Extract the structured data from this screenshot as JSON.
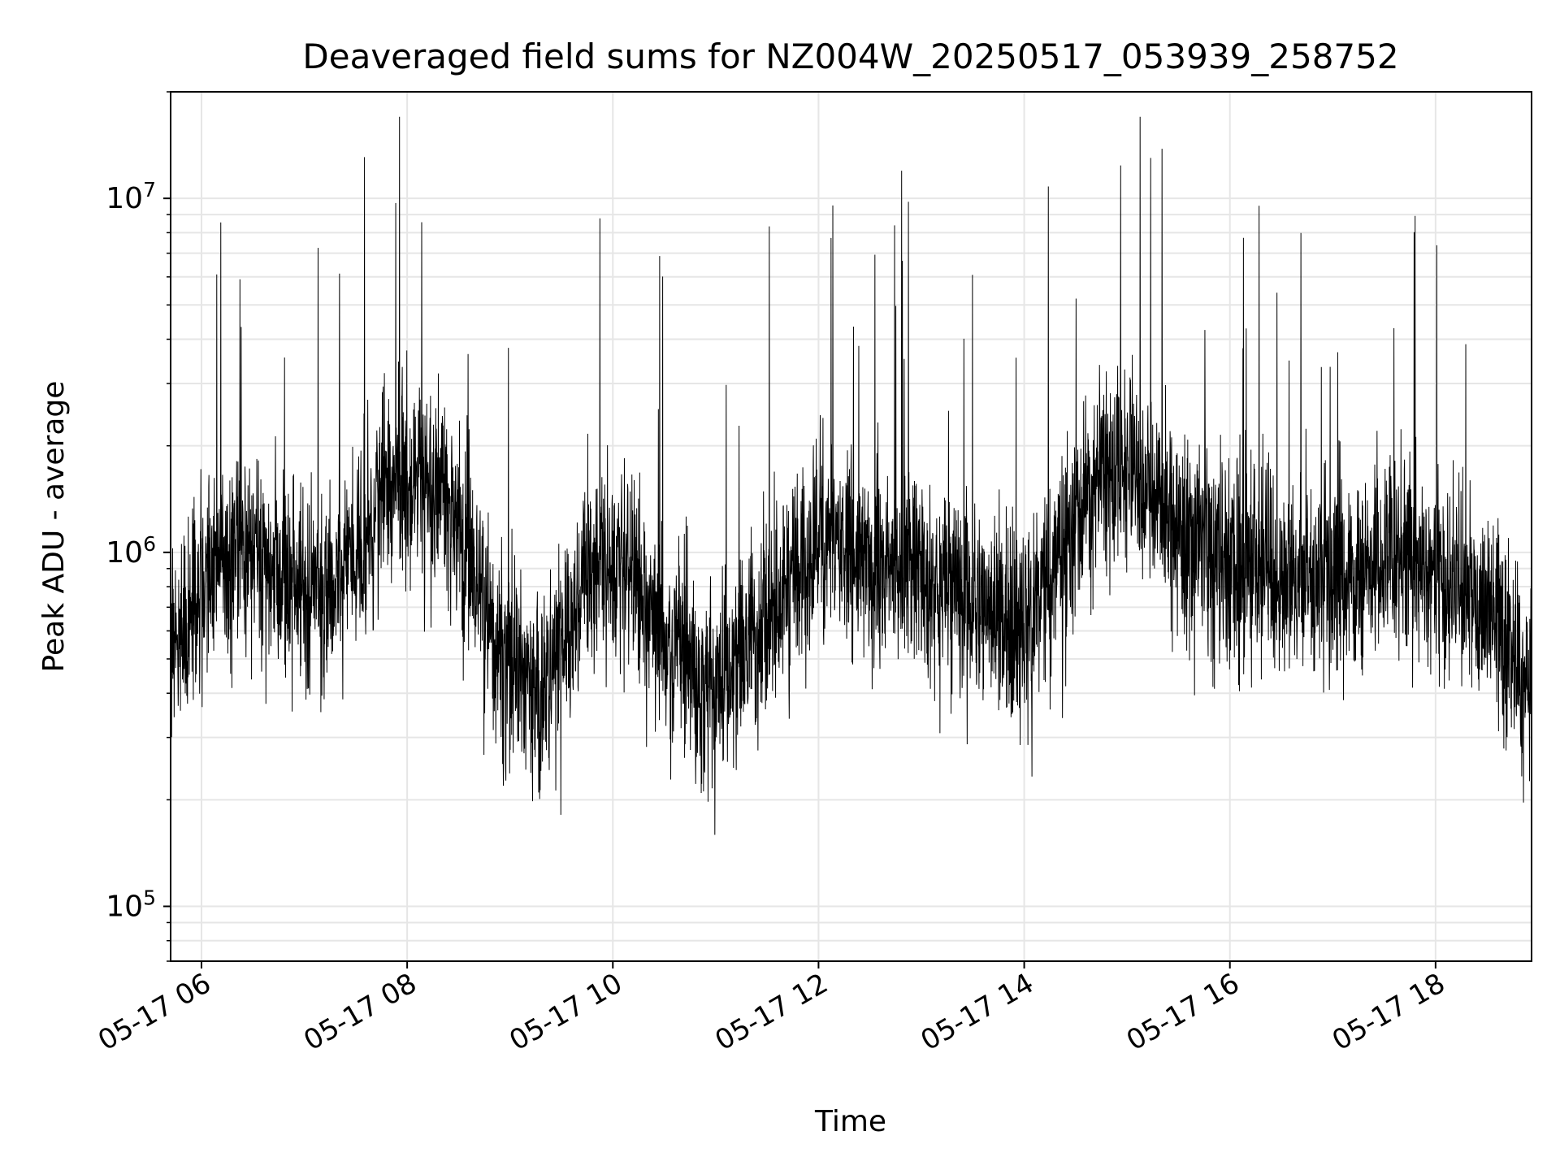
{
  "chart_data": {
    "type": "line",
    "title": "Deaveraged field sums for NZ004W_20250517_053939_258752",
    "xlabel": "Time",
    "ylabel": "Peak ADU - average",
    "x_range": [
      "2025-05-17T05:42",
      "2025-05-17T18:56"
    ],
    "y_range": [
      70000,
      20000000
    ],
    "y_scale": "log",
    "grid": true,
    "line_color": "#000000",
    "grid_color": "#e6e6e6",
    "x_ticks": [
      {
        "value": "2025-05-17T06:00",
        "label": "05-17 06"
      },
      {
        "value": "2025-05-17T08:00",
        "label": "05-17 08"
      },
      {
        "value": "2025-05-17T10:00",
        "label": "05-17 10"
      },
      {
        "value": "2025-05-17T12:00",
        "label": "05-17 12"
      },
      {
        "value": "2025-05-17T14:00",
        "label": "05-17 14"
      },
      {
        "value": "2025-05-17T16:00",
        "label": "05-17 16"
      },
      {
        "value": "2025-05-17T18:00",
        "label": "05-17 18"
      }
    ],
    "y_ticks": [
      {
        "value": 100000,
        "base": "10",
        "exp": "5"
      },
      {
        "value": 1000000,
        "base": "10",
        "exp": "6"
      },
      {
        "value": 10000000,
        "base": "10",
        "exp": "7"
      }
    ],
    "series": [
      {
        "x": [
          "2025-05-17T05:42",
          "2025-05-17T06:00",
          "2025-05-17T06:15",
          "2025-05-17T06:30",
          "2025-05-17T06:45",
          "2025-05-17T07:00",
          "2025-05-17T07:15",
          "2025-05-17T07:30",
          "2025-05-17T07:45",
          "2025-05-17T08:00",
          "2025-05-17T08:15",
          "2025-05-17T08:30",
          "2025-05-17T08:45",
          "2025-05-17T09:00",
          "2025-05-17T09:15",
          "2025-05-17T09:30",
          "2025-05-17T09:45",
          "2025-05-17T10:00",
          "2025-05-17T10:15",
          "2025-05-17T10:30",
          "2025-05-17T10:45",
          "2025-05-17T11:00",
          "2025-05-17T11:15",
          "2025-05-17T11:30",
          "2025-05-17T11:45",
          "2025-05-17T12:00",
          "2025-05-17T12:15",
          "2025-05-17T12:30",
          "2025-05-17T12:45",
          "2025-05-17T13:00",
          "2025-05-17T13:15",
          "2025-05-17T13:30",
          "2025-05-17T13:45",
          "2025-05-17T14:00",
          "2025-05-17T14:15",
          "2025-05-17T14:30",
          "2025-05-17T14:45",
          "2025-05-17T15:00",
          "2025-05-17T15:15",
          "2025-05-17T15:30",
          "2025-05-17T15:45",
          "2025-05-17T16:00",
          "2025-05-17T16:15",
          "2025-05-17T16:30",
          "2025-05-17T16:45",
          "2025-05-17T17:00",
          "2025-05-17T17:15",
          "2025-05-17T17:30",
          "2025-05-17T17:45",
          "2025-05-17T18:00",
          "2025-05-17T18:15",
          "2025-05-17T18:30",
          "2025-05-17T18:45",
          "2025-05-17T18:56"
        ],
        "y": [
          550000,
          800000,
          900000,
          1000000,
          850000,
          800000,
          750000,
          1000000,
          1400000,
          1700000,
          1500000,
          1200000,
          700000,
          450000,
          380000,
          500000,
          900000,
          950000,
          800000,
          550000,
          450000,
          400000,
          500000,
          650000,
          850000,
          1100000,
          1000000,
          950000,
          900000,
          850000,
          800000,
          700000,
          650000,
          600000,
          800000,
          1300000,
          1600000,
          1800000,
          1400000,
          1200000,
          1000000,
          900000,
          950000,
          850000,
          900000,
          800000,
          850000,
          950000,
          1000000,
          850000,
          750000,
          700000,
          500000,
          450000
        ]
      }
    ]
  }
}
